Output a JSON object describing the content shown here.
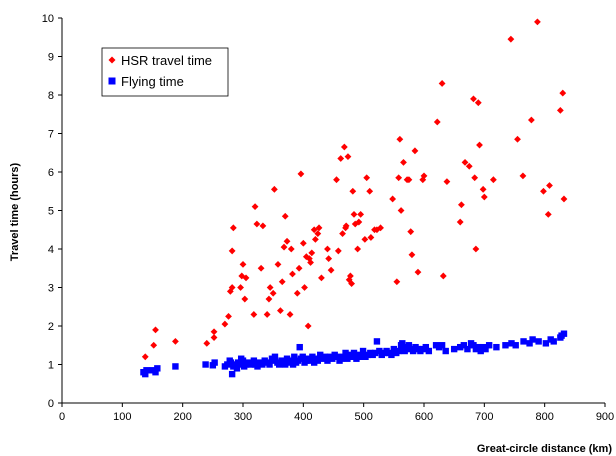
{
  "chart_data": {
    "type": "scatter",
    "title": "",
    "xlabel": "Great-circle distance (km)",
    "ylabel": "Travel time (hours)",
    "xlim": [
      0,
      900
    ],
    "ylim": [
      0,
      10
    ],
    "x_ticks": [
      0,
      100,
      200,
      300,
      400,
      500,
      600,
      700,
      800,
      900
    ],
    "y_ticks": [
      0,
      1,
      2,
      3,
      4,
      5,
      6,
      7,
      8,
      9,
      10
    ],
    "grid": false,
    "legend_position": "upper-left",
    "series": [
      {
        "name": "HSR travel time",
        "marker": "diamond",
        "color": "#ff0000",
        "points": [
          [
            138,
            1.2
          ],
          [
            152,
            1.5
          ],
          [
            155,
            1.9
          ],
          [
            188,
            1.6
          ],
          [
            240,
            1.55
          ],
          [
            252,
            1.7
          ],
          [
            252,
            1.85
          ],
          [
            270,
            2.05
          ],
          [
            276,
            2.25
          ],
          [
            279,
            2.9
          ],
          [
            282,
            3.0
          ],
          [
            282,
            3.95
          ],
          [
            284,
            4.55
          ],
          [
            296,
            3.0
          ],
          [
            298,
            3.3
          ],
          [
            300,
            3.6
          ],
          [
            303,
            2.7
          ],
          [
            305,
            3.25
          ],
          [
            318,
            2.3
          ],
          [
            320,
            5.1
          ],
          [
            323,
            4.65
          ],
          [
            330,
            3.5
          ],
          [
            333,
            4.6
          ],
          [
            340,
            2.3
          ],
          [
            343,
            2.7
          ],
          [
            345,
            3.0
          ],
          [
            350,
            2.85
          ],
          [
            352,
            5.55
          ],
          [
            358,
            3.6
          ],
          [
            362,
            2.4
          ],
          [
            365,
            3.15
          ],
          [
            368,
            4.05
          ],
          [
            370,
            4.85
          ],
          [
            373,
            4.2
          ],
          [
            378,
            2.3
          ],
          [
            380,
            4.0
          ],
          [
            382,
            3.35
          ],
          [
            390,
            2.85
          ],
          [
            393,
            3.5
          ],
          [
            396,
            5.95
          ],
          [
            400,
            4.15
          ],
          [
            402,
            3.0
          ],
          [
            405,
            3.8
          ],
          [
            408,
            2.0
          ],
          [
            410,
            3.75
          ],
          [
            412,
            3.65
          ],
          [
            414,
            3.9
          ],
          [
            418,
            4.5
          ],
          [
            420,
            4.25
          ],
          [
            424,
            4.4
          ],
          [
            426,
            4.55
          ],
          [
            430,
            3.25
          ],
          [
            440,
            4.0
          ],
          [
            442,
            3.75
          ],
          [
            446,
            3.45
          ],
          [
            455,
            5.8
          ],
          [
            458,
            3.95
          ],
          [
            462,
            6.35
          ],
          [
            465,
            4.4
          ],
          [
            468,
            6.65
          ],
          [
            470,
            4.55
          ],
          [
            471,
            4.6
          ],
          [
            474,
            6.4
          ],
          [
            476,
            3.2
          ],
          [
            478,
            3.3
          ],
          [
            480,
            3.1
          ],
          [
            482,
            5.5
          ],
          [
            484,
            4.9
          ],
          [
            486,
            4.65
          ],
          [
            490,
            4.0
          ],
          [
            492,
            4.7
          ],
          [
            495,
            4.9
          ],
          [
            502,
            4.25
          ],
          [
            505,
            5.85
          ],
          [
            510,
            5.5
          ],
          [
            512,
            4.3
          ],
          [
            518,
            4.5
          ],
          [
            522,
            4.5
          ],
          [
            528,
            4.55
          ],
          [
            548,
            5.3
          ],
          [
            555,
            3.15
          ],
          [
            558,
            5.85
          ],
          [
            560,
            6.85
          ],
          [
            562,
            5.0
          ],
          [
            566,
            6.25
          ],
          [
            572,
            5.8
          ],
          [
            575,
            5.8
          ],
          [
            578,
            4.45
          ],
          [
            580,
            3.85
          ],
          [
            585,
            6.55
          ],
          [
            590,
            3.4
          ],
          [
            598,
            5.8
          ],
          [
            600,
            5.9
          ],
          [
            622,
            7.3
          ],
          [
            630,
            8.3
          ],
          [
            632,
            3.3
          ],
          [
            638,
            5.75
          ],
          [
            660,
            4.7
          ],
          [
            662,
            5.15
          ],
          [
            668,
            6.25
          ],
          [
            675,
            6.15
          ],
          [
            682,
            7.9
          ],
          [
            684,
            5.85
          ],
          [
            686,
            4.0
          ],
          [
            690,
            7.8
          ],
          [
            692,
            6.7
          ],
          [
            698,
            5.55
          ],
          [
            700,
            5.35
          ],
          [
            715,
            5.8
          ],
          [
            744,
            9.45
          ],
          [
            755,
            6.85
          ],
          [
            764,
            5.9
          ],
          [
            778,
            7.35
          ],
          [
            788,
            9.9
          ],
          [
            798,
            5.5
          ],
          [
            806,
            4.9
          ],
          [
            808,
            5.65
          ],
          [
            826,
            7.6
          ],
          [
            830,
            8.05
          ],
          [
            832,
            5.3
          ]
        ]
      },
      {
        "name": "Flying time",
        "marker": "square",
        "color": "#0000ff",
        "points": [
          [
            135,
            0.8
          ],
          [
            138,
            0.75
          ],
          [
            140,
            0.85
          ],
          [
            150,
            0.85
          ],
          [
            155,
            0.8
          ],
          [
            158,
            0.9
          ],
          [
            188,
            0.95
          ],
          [
            238,
            1.0
          ],
          [
            250,
            0.98
          ],
          [
            253,
            1.05
          ],
          [
            270,
            0.95
          ],
          [
            274,
            1.0
          ],
          [
            278,
            1.1
          ],
          [
            280,
            1.05
          ],
          [
            282,
            0.75
          ],
          [
            284,
            0.95
          ],
          [
            286,
            1.0
          ],
          [
            290,
            0.9
          ],
          [
            292,
            1.05
          ],
          [
            295,
            1.0
          ],
          [
            297,
            1.15
          ],
          [
            300,
            1.1
          ],
          [
            302,
            0.95
          ],
          [
            305,
            1.0
          ],
          [
            310,
            1.05
          ],
          [
            313,
            1.0
          ],
          [
            318,
            1.1
          ],
          [
            320,
            1.0
          ],
          [
            324,
            0.95
          ],
          [
            328,
            1.05
          ],
          [
            332,
            1.0
          ],
          [
            336,
            1.1
          ],
          [
            340,
            1.05
          ],
          [
            344,
            1.0
          ],
          [
            348,
            1.15
          ],
          [
            350,
            1.1
          ],
          [
            353,
            1.2
          ],
          [
            357,
            1.05
          ],
          [
            360,
            1.0
          ],
          [
            364,
            1.1
          ],
          [
            367,
            1.05
          ],
          [
            370,
            1.0
          ],
          [
            373,
            1.15
          ],
          [
            376,
            1.05
          ],
          [
            380,
            1.1
          ],
          [
            383,
            1.0
          ],
          [
            385,
            1.2
          ],
          [
            388,
            1.05
          ],
          [
            391,
            1.1
          ],
          [
            394,
            1.45
          ],
          [
            396,
            1.15
          ],
          [
            399,
            1.2
          ],
          [
            402,
            1.05
          ],
          [
            405,
            1.1
          ],
          [
            408,
            1.15
          ],
          [
            412,
            1.1
          ],
          [
            415,
            1.2
          ],
          [
            418,
            1.05
          ],
          [
            421,
            1.15
          ],
          [
            424,
            1.1
          ],
          [
            428,
            1.25
          ],
          [
            432,
            1.15
          ],
          [
            436,
            1.2
          ],
          [
            440,
            1.1
          ],
          [
            444,
            1.2
          ],
          [
            448,
            1.15
          ],
          [
            452,
            1.25
          ],
          [
            456,
            1.2
          ],
          [
            460,
            1.1
          ],
          [
            463,
            1.15
          ],
          [
            466,
            1.2
          ],
          [
            470,
            1.3
          ],
          [
            473,
            1.15
          ],
          [
            476,
            1.25
          ],
          [
            480,
            1.2
          ],
          [
            484,
            1.3
          ],
          [
            488,
            1.15
          ],
          [
            491,
            1.25
          ],
          [
            495,
            1.2
          ],
          [
            499,
            1.35
          ],
          [
            503,
            1.2
          ],
          [
            507,
            1.25
          ],
          [
            511,
            1.3
          ],
          [
            515,
            1.25
          ],
          [
            519,
            1.3
          ],
          [
            522,
            1.6
          ],
          [
            526,
            1.35
          ],
          [
            530,
            1.25
          ],
          [
            534,
            1.3
          ],
          [
            538,
            1.35
          ],
          [
            542,
            1.3
          ],
          [
            546,
            1.25
          ],
          [
            550,
            1.4
          ],
          [
            554,
            1.3
          ],
          [
            558,
            1.35
          ],
          [
            562,
            1.5
          ],
          [
            564,
            1.55
          ],
          [
            566,
            1.4
          ],
          [
            568,
            1.35
          ],
          [
            572,
            1.45
          ],
          [
            575,
            1.5
          ],
          [
            578,
            1.4
          ],
          [
            582,
            1.35
          ],
          [
            586,
            1.45
          ],
          [
            590,
            1.4
          ],
          [
            594,
            1.35
          ],
          [
            598,
            1.4
          ],
          [
            603,
            1.45
          ],
          [
            608,
            1.35
          ],
          [
            620,
            1.5
          ],
          [
            625,
            1.45
          ],
          [
            630,
            1.5
          ],
          [
            636,
            1.35
          ],
          [
            650,
            1.4
          ],
          [
            660,
            1.45
          ],
          [
            666,
            1.5
          ],
          [
            672,
            1.4
          ],
          [
            678,
            1.55
          ],
          [
            682,
            1.5
          ],
          [
            686,
            1.4
          ],
          [
            690,
            1.45
          ],
          [
            694,
            1.35
          ],
          [
            698,
            1.45
          ],
          [
            702,
            1.4
          ],
          [
            708,
            1.5
          ],
          [
            720,
            1.45
          ],
          [
            735,
            1.5
          ],
          [
            745,
            1.55
          ],
          [
            752,
            1.5
          ],
          [
            765,
            1.6
          ],
          [
            775,
            1.55
          ],
          [
            780,
            1.65
          ],
          [
            790,
            1.6
          ],
          [
            802,
            1.55
          ],
          [
            810,
            1.65
          ],
          [
            815,
            1.6
          ],
          [
            826,
            1.7
          ],
          [
            828,
            1.75
          ],
          [
            832,
            1.8
          ]
        ]
      }
    ]
  }
}
